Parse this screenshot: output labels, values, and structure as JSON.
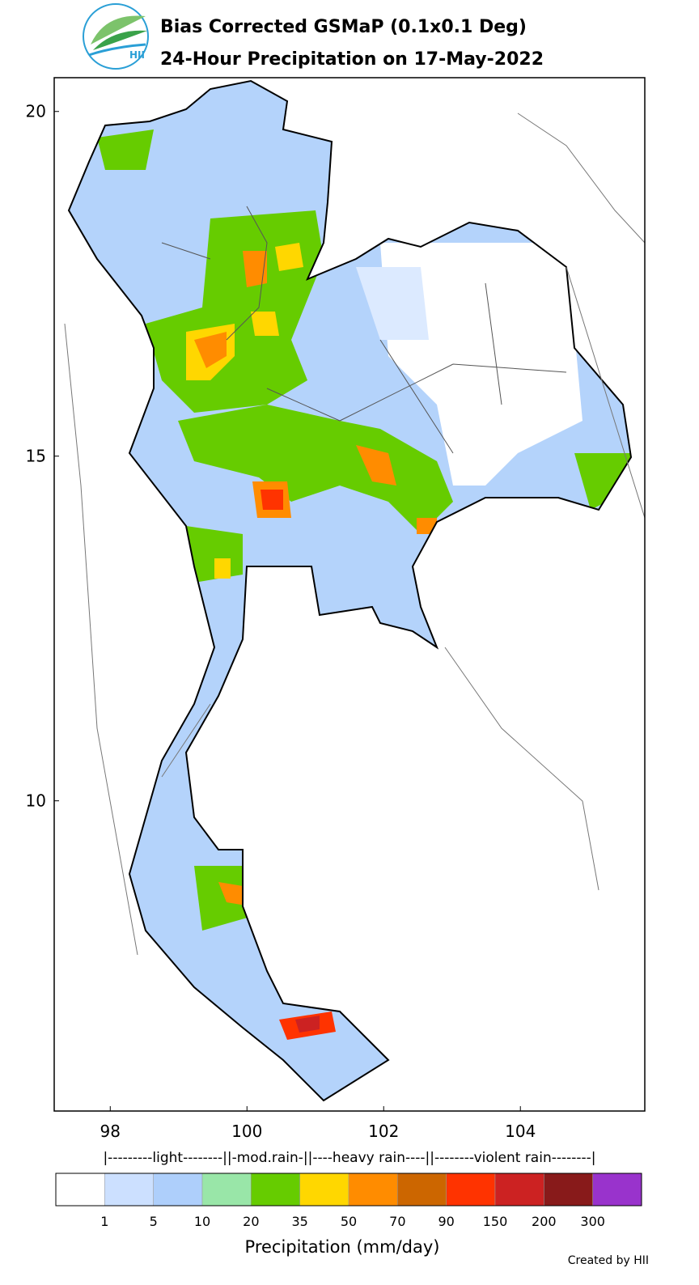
{
  "logo_text": "HII",
  "title": [
    "Bias Corrected GSMaP (0.1x0.1 Deg)",
    "24-Hour Precipitation on 17-May-2022"
  ],
  "map": {
    "xlim": [
      97.18,
      105.82
    ],
    "ylim": [
      5.5,
      20.49
    ],
    "xticks": [
      98,
      100,
      102,
      104
    ],
    "yticks": [
      20,
      15,
      10
    ]
  },
  "legend": {
    "category_line": "|---------light--------||-mod.rain-||----heavy rain----||--------violent rain--------|",
    "colors": [
      "#ffffff",
      "#cce0ff",
      "#aecffb",
      "#99e6a8",
      "#66cc00",
      "#ffd700",
      "#ff8c00",
      "#cc6600",
      "#ff3300",
      "#cc2222",
      "#881a1a",
      "#9933cc"
    ],
    "ticks": [
      1,
      5,
      10,
      20,
      35,
      50,
      70,
      90,
      150,
      200,
      300
    ],
    "label": "Precipitation (mm/day)"
  },
  "credit": "Created by HII"
}
